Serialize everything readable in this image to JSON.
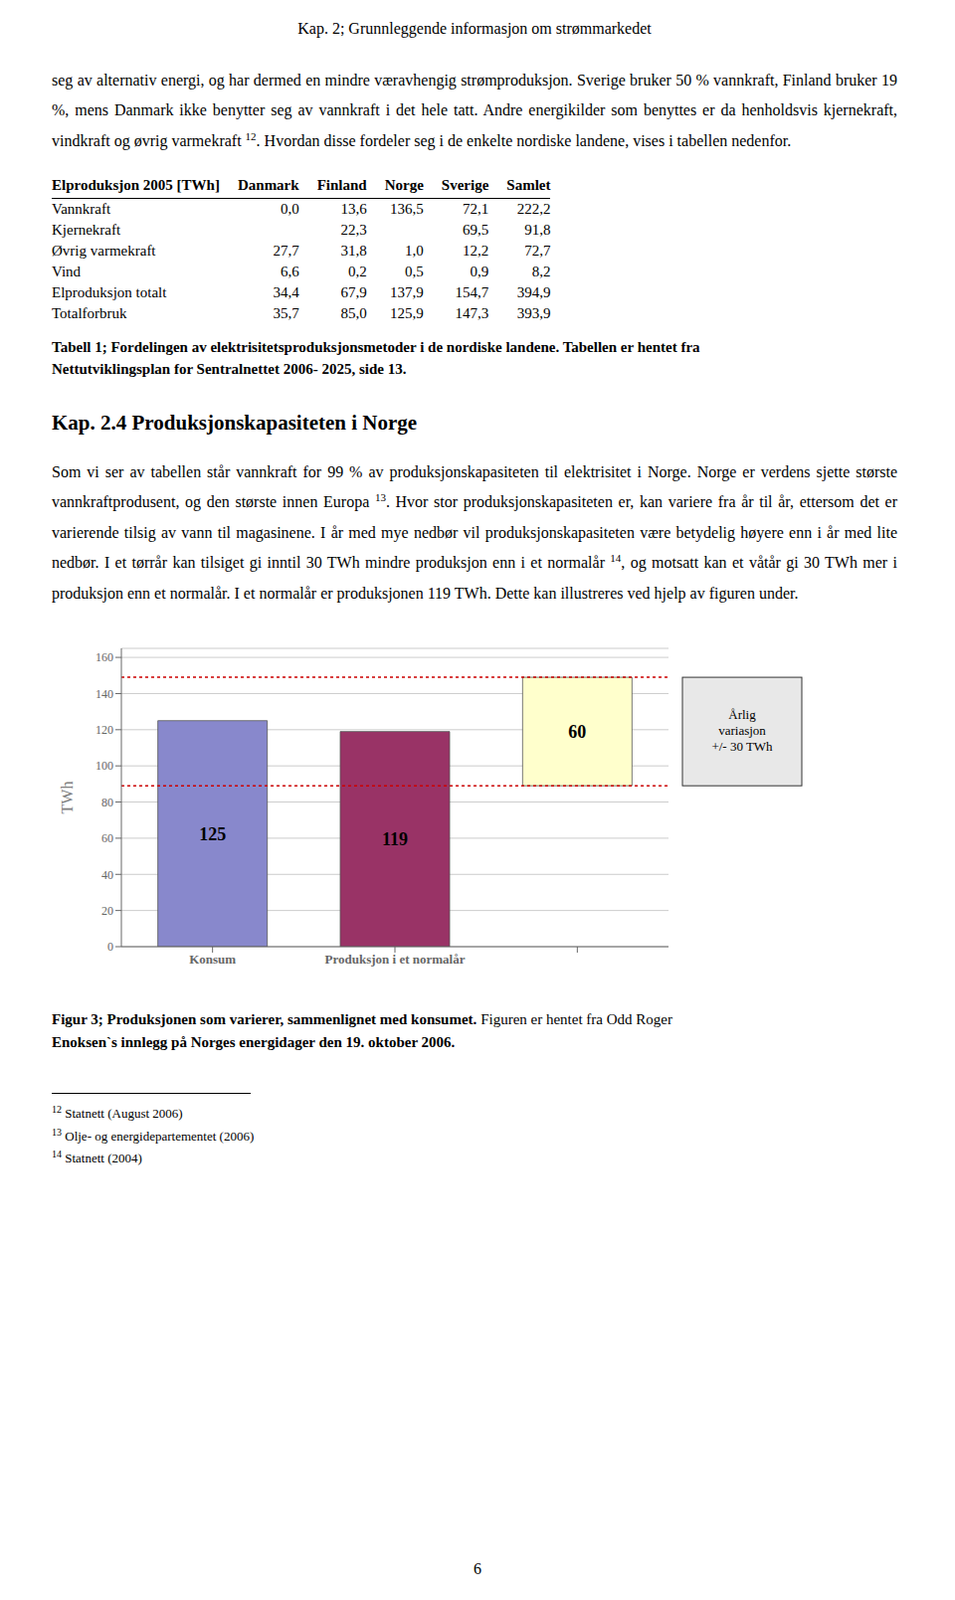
{
  "header": "Kap. 2; Grunnleggende informasjon om strømmarkedet",
  "paragraph1": [
    "seg av alternativ energi, og har dermed en mindre væravhengig strømproduksjon. Sverige bruker 50 % vannkraft, Finland bruker 19 %, mens Danmark ikke benytter seg av vannkraft i det hele tatt. Andre energikilder som benyttes er da henholdsvis kjernekraft, vindkraft og øvrig varmekraft ",
    {
      "sup": "12"
    },
    ". Hvordan disse fordeler seg i de enkelte nordiske landene, vises i tabellen nedenfor."
  ],
  "table": {
    "header": [
      "Elproduksjon 2005 [TWh]",
      "Danmark",
      "Finland",
      "Norge",
      "Sverige",
      "Samlet"
    ],
    "rows": [
      [
        "Vannkraft",
        "0,0",
        "13,6",
        "136,5",
        "72,1",
        "222,2"
      ],
      [
        "Kjernekraft",
        null,
        "22,3",
        null,
        "69,5",
        "91,8"
      ],
      [
        "Øvrig varmekraft",
        "27,7",
        "31,8",
        "1,0",
        "12,2",
        "72,7"
      ],
      [
        "Vind",
        "6,6",
        "0,2",
        "0,5",
        "0,9",
        "8,2"
      ],
      [
        "Elproduksjon totalt",
        "34,4",
        "67,9",
        "137,9",
        "154,7",
        "394,9"
      ],
      [
        "Totalforbruk",
        "35,7",
        "85,0",
        "125,9",
        "147,3",
        "393,9"
      ]
    ]
  },
  "table_caption": [
    "Tabell 1; Fordelingen av elektrisitetsproduksjonsmetoder i de nordiske landene. Tabellen er hentet fra",
    "Nettutviklingsplan for Sentralnettet 2006- 2025, side 13."
  ],
  "section_heading": "Kap. 2.4 Produksjonskapasiteten i Norge",
  "paragraph2": [
    "Som vi ser av tabellen står vannkraft for 99 % av produksjonskapasiteten til elektrisitet i Norge. Norge er verdens sjette største vannkraftprodusent, og den største innen Europa ",
    {
      "sup": "13"
    },
    ". Hvor stor produksjonskapasiteten er, kan variere fra år til år, ettersom det er varierende tilsig av vann til magasinene. I år med mye nedbør vil produksjonskapasiteten være betydelig høyere enn i år med lite nedbør. I et tørrår kan tilsiget gi inntil 30 TWh mindre produksjon enn i et normalår ",
    {
      "sup": "14"
    },
    ", og motsatt kan et våtår gi 30 TWh mer i produksjon enn et normalår. I et normalår er produksjonen 119 TWh. Dette kan illustreres ved hjelp av figuren under."
  ],
  "chart_data": {
    "type": "bar",
    "categories": [
      "Konsum",
      "Produksjon i et normalår",
      null
    ],
    "values": [
      125,
      119,
      60
    ],
    "bottoms": [
      0,
      0,
      89
    ],
    "colors": [
      "#8888cc",
      "#993366",
      "#ffffcc"
    ],
    "data_labels": true,
    "ylabel": "TWh",
    "ylim": [
      0,
      165
    ],
    "yticks": [
      0,
      20,
      40,
      60,
      80,
      100,
      120,
      140,
      160
    ],
    "grid": true,
    "reference_lines": [
      {
        "value": 149,
        "color": "#cc0000",
        "line_style": "dotted"
      },
      {
        "value": 89,
        "color": "#cc0000",
        "line_style": "dotted"
      }
    ],
    "annotations": [
      {
        "text": "Årlig\nvariasjon\n+/- 30 TWh",
        "y_range": [
          89,
          149
        ],
        "color": "#e8e8e8"
      }
    ]
  },
  "figure_caption": [
    [
      {
        "text": "Figur 3; Produksjonen som varierer, sammenlignet med konsumet.",
        "bold": true
      },
      {
        "text": " Figuren er hentet fra Odd Roger",
        "bold": false
      }
    ],
    [
      {
        "text": "Enoksen`s innlegg på Norges energidager den 19. oktober 2006.",
        "bold": true
      }
    ]
  ],
  "footnotes": [
    {
      "sup": "12",
      "text": "Statnett (August 2006)"
    },
    {
      "sup": "13",
      "text": "Olje- og energidepartementet (2006)"
    },
    {
      "sup": "14",
      "text": "Statnett (2004)"
    }
  ],
  "page_number": "6"
}
